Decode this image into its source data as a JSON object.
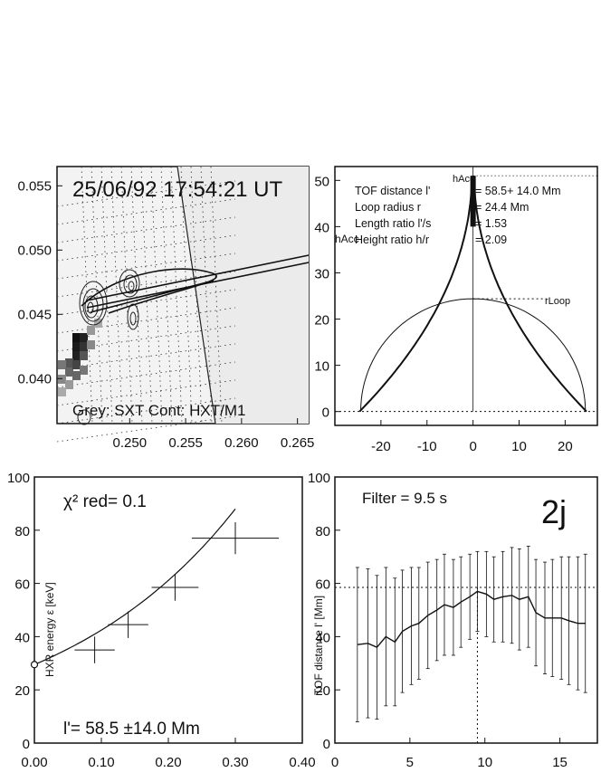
{
  "chart_data": [
    {
      "type": "image+contour",
      "title": "25/06/92  17:54:21 UT",
      "caption": "Grey: SXT  Cont: HXT/M1",
      "xticks": [
        "0.250",
        "0.255",
        "0.260",
        "0.265"
      ],
      "yticks": [
        "0.055",
        "0.050",
        "0.045",
        "0.040"
      ],
      "xlim": [
        0.2435,
        0.266
      ],
      "ylim": [
        0.0365,
        0.0565
      ]
    },
    {
      "type": "line",
      "legend": [
        {
          "label": "TOF distance l'",
          "value": "= 58.5+ 14.0 Mm"
        },
        {
          "label": "Loop radius r",
          "value": "= 24.4 Mm"
        },
        {
          "label": "Length ratio l'/s",
          "value": "= 1.53"
        },
        {
          "label": "Height ratio h/r",
          "value": "= 2.09"
        }
      ],
      "annotations": {
        "h_acc": "hAcc",
        "h_acc_top": "hAcc",
        "r_loop": "rLoop"
      },
      "loop_radius": 24.4,
      "h_acc": 51,
      "xticks": [
        -20,
        -10,
        0,
        10,
        20
      ],
      "yticks": [
        0,
        10,
        20,
        30,
        40,
        50
      ],
      "xlim": [
        -30,
        27
      ],
      "ylim": [
        -3,
        53
      ]
    },
    {
      "type": "scatter",
      "fit_label": "χ² red= 0.1",
      "ylabel": "HXR energy ε [keV]",
      "result_label": "l'=  58.5 ±14.0 Mm",
      "points": [
        {
          "x": 0.09,
          "xerr": 0.03,
          "y": 35,
          "yerr": 5
        },
        {
          "x": 0.14,
          "xerr": 0.03,
          "y": 44.5,
          "yerr": 5
        },
        {
          "x": 0.21,
          "xerr": 0.035,
          "y": 58.5,
          "yerr": 5
        },
        {
          "x": 0.3,
          "xerr": 0.065,
          "y": 77,
          "yerr": 6
        }
      ],
      "fit": {
        "x0": 0,
        "y0": 29.5,
        "x1": 0.3,
        "y1": 88
      },
      "xticks": [
        "0.00",
        "0.10",
        "0.20",
        "0.30",
        "0.40"
      ],
      "yticks": [
        0,
        20,
        40,
        60,
        80,
        100
      ],
      "xlim": [
        0,
        0.4
      ],
      "ylim": [
        0,
        100
      ]
    },
    {
      "type": "line",
      "title": "Filter =  9.5 s",
      "panel_label": "2j",
      "ylabel": "TOF distance l' [Mm]",
      "reference": {
        "x": 9.5,
        "y": 58.5
      },
      "x": [
        1.5,
        2.2,
        2.8,
        3.4,
        4.0,
        4.5,
        5.1,
        5.6,
        6.2,
        6.8,
        7.3,
        7.9,
        8.4,
        9.0,
        9.5,
        10.1,
        10.6,
        11.2,
        11.8,
        12.3,
        12.9,
        13.4,
        14.0,
        14.5,
        15.1,
        15.6,
        16.2,
        16.7
      ],
      "y": [
        37,
        37.5,
        36,
        40,
        38,
        42,
        44,
        45,
        48,
        50,
        52,
        51,
        53,
        55,
        57,
        56,
        54,
        55,
        55.5,
        54,
        55,
        49,
        47,
        47,
        47,
        46,
        45,
        45
      ],
      "yerr": [
        29,
        28,
        27,
        26,
        24,
        23,
        22,
        21,
        20,
        19,
        19,
        18,
        17,
        16,
        15,
        16,
        16,
        17,
        18,
        19,
        19,
        20,
        21,
        22,
        23,
        24,
        25,
        26
      ],
      "xticks": [
        0,
        5,
        10,
        15
      ],
      "yticks": [
        0,
        20,
        40,
        60,
        80,
        100
      ],
      "xlim": [
        0,
        17.5
      ],
      "ylim": [
        0,
        100
      ]
    }
  ]
}
